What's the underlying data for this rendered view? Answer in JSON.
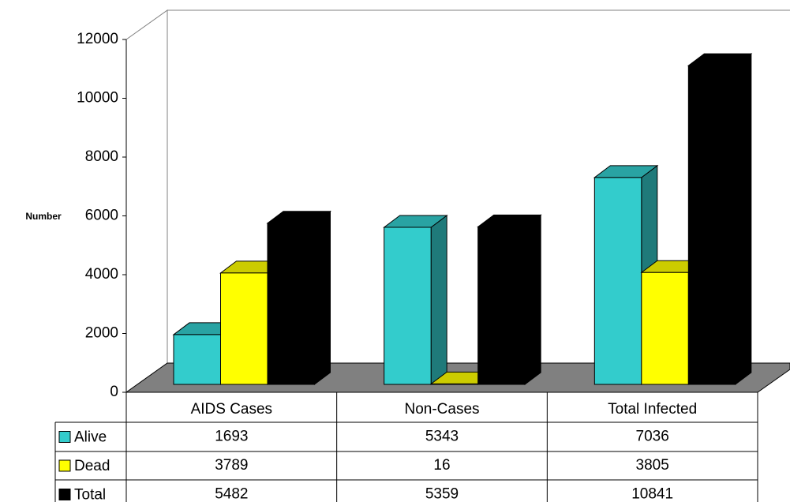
{
  "chart_data": {
    "type": "bar",
    "ylabel": "Number",
    "categories": [
      "AIDS Cases",
      "Non-Cases",
      "Total Infected"
    ],
    "series": [
      {
        "name": "Alive",
        "color": "#33cccc",
        "values": [
          1693,
          5343,
          7036
        ]
      },
      {
        "name": "Dead",
        "color": "#ffff00",
        "values": [
          3789,
          16,
          3805
        ]
      },
      {
        "name": "Total",
        "color": "#000000",
        "values": [
          5482,
          5359,
          10841
        ]
      }
    ],
    "ylim": [
      0,
      12000
    ],
    "yticks": [
      0,
      2000,
      4000,
      6000,
      8000,
      10000,
      12000
    ],
    "grid": false
  }
}
